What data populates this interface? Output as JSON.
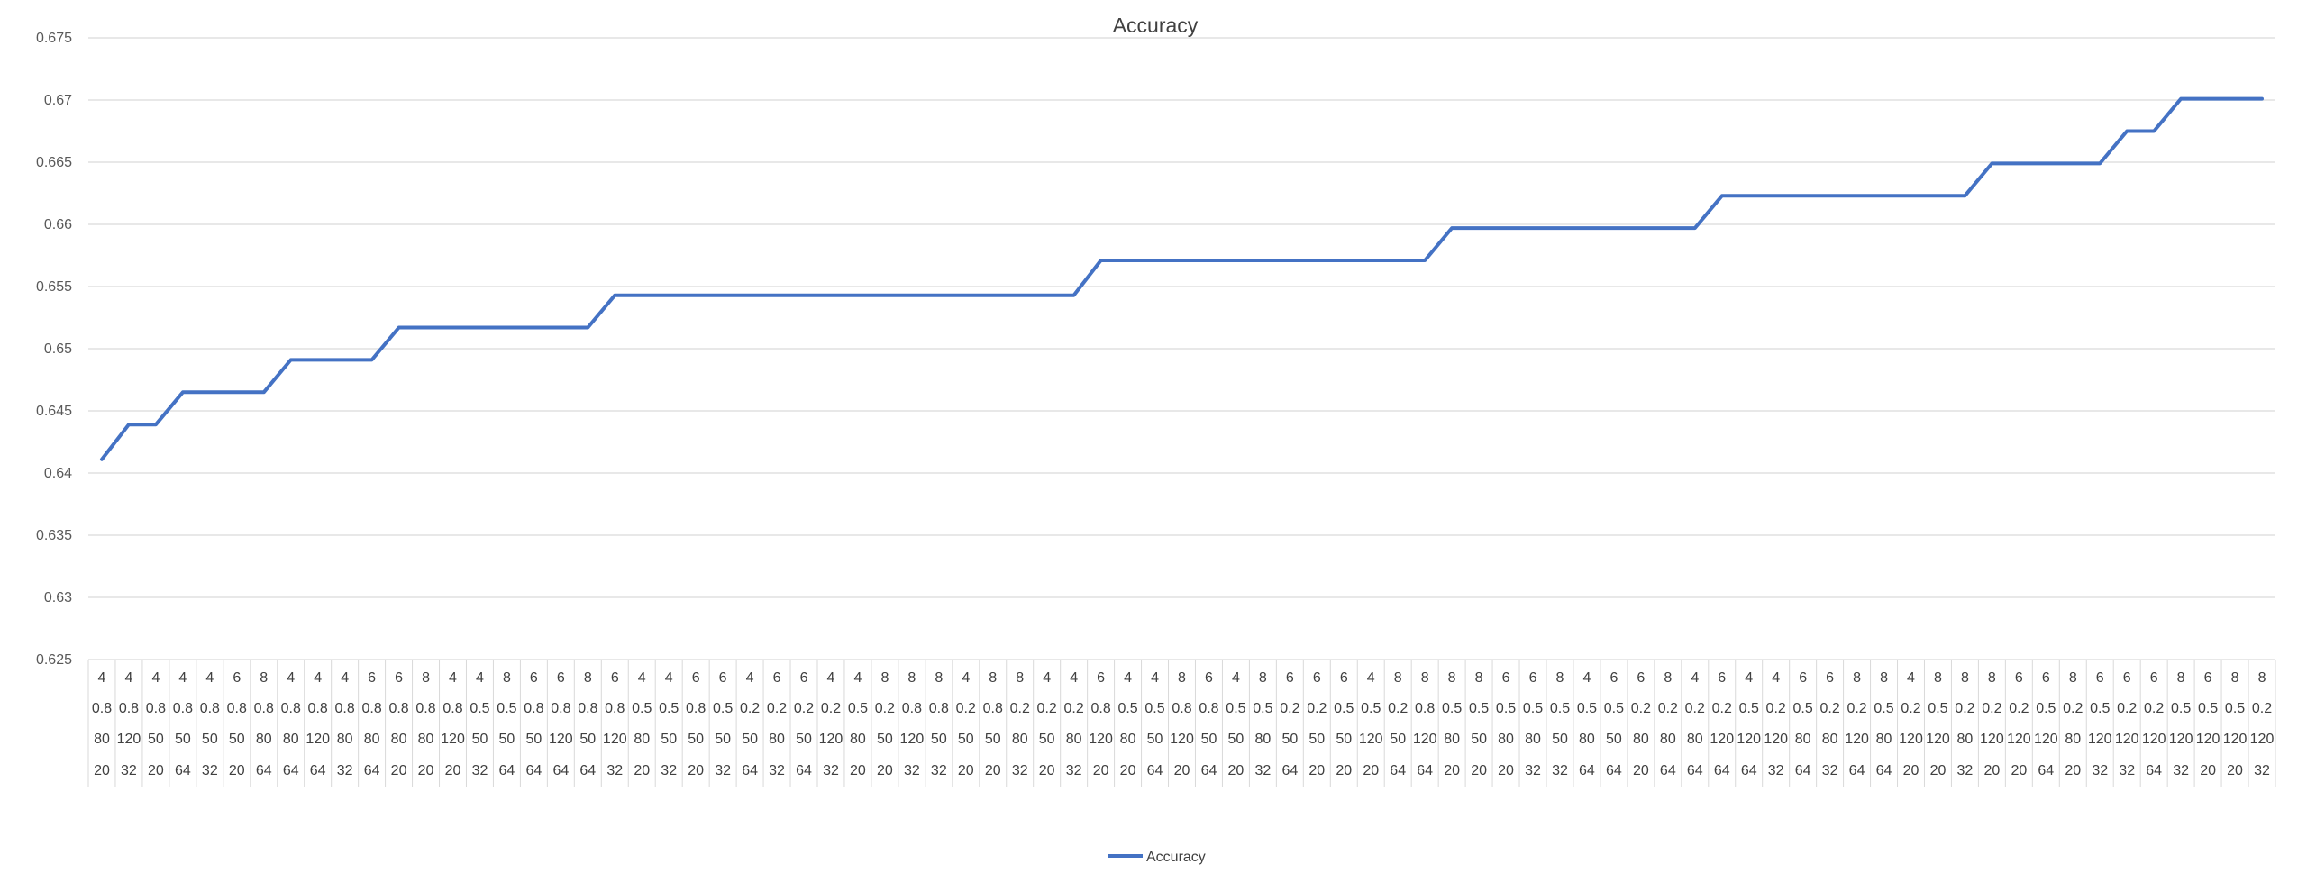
{
  "chart_data": {
    "type": "line",
    "title": "Accuracy",
    "xlabel": "",
    "ylabel": "",
    "ylim": [
      0.625,
      0.675
    ],
    "yticks": [
      "0.625",
      "0.63",
      "0.635",
      "0.64",
      "0.645",
      "0.65",
      "0.655",
      "0.66",
      "0.665",
      "0.67",
      "0.675"
    ],
    "grid": true,
    "legend_position": "bottom",
    "series_color": "#4472C4",
    "categories": [
      [
        "4",
        "0.8",
        "80",
        "20"
      ],
      [
        "4",
        "0.8",
        "120",
        "32"
      ],
      [
        "4",
        "0.8",
        "50",
        "20"
      ],
      [
        "4",
        "0.8",
        "50",
        "64"
      ],
      [
        "4",
        "0.8",
        "50",
        "32"
      ],
      [
        "6",
        "0.8",
        "50",
        "20"
      ],
      [
        "8",
        "0.8",
        "80",
        "64"
      ],
      [
        "4",
        "0.8",
        "80",
        "64"
      ],
      [
        "4",
        "0.8",
        "120",
        "64"
      ],
      [
        "4",
        "0.8",
        "80",
        "32"
      ],
      [
        "6",
        "0.8",
        "80",
        "64"
      ],
      [
        "6",
        "0.8",
        "80",
        "20"
      ],
      [
        "8",
        "0.8",
        "80",
        "20"
      ],
      [
        "4",
        "0.8",
        "120",
        "20"
      ],
      [
        "4",
        "0.5",
        "50",
        "32"
      ],
      [
        "8",
        "0.5",
        "50",
        "64"
      ],
      [
        "6",
        "0.8",
        "50",
        "64"
      ],
      [
        "6",
        "0.8",
        "120",
        "64"
      ],
      [
        "8",
        "0.8",
        "50",
        "64"
      ],
      [
        "6",
        "0.8",
        "120",
        "32"
      ],
      [
        "4",
        "0.5",
        "80",
        "20"
      ],
      [
        "4",
        "0.5",
        "50",
        "32"
      ],
      [
        "6",
        "0.8",
        "50",
        "20"
      ],
      [
        "6",
        "0.5",
        "50",
        "32"
      ],
      [
        "4",
        "0.2",
        "50",
        "64"
      ],
      [
        "6",
        "0.2",
        "80",
        "32"
      ],
      [
        "6",
        "0.2",
        "50",
        "64"
      ],
      [
        "4",
        "0.2",
        "120",
        "32"
      ],
      [
        "4",
        "0.5",
        "80",
        "20"
      ],
      [
        "8",
        "0.2",
        "50",
        "20"
      ],
      [
        "8",
        "0.8",
        "120",
        "32"
      ],
      [
        "8",
        "0.8",
        "50",
        "32"
      ],
      [
        "4",
        "0.2",
        "50",
        "20"
      ],
      [
        "8",
        "0.8",
        "50",
        "20"
      ],
      [
        "8",
        "0.2",
        "80",
        "32"
      ],
      [
        "4",
        "0.2",
        "50",
        "20"
      ],
      [
        "4",
        "0.2",
        "80",
        "32"
      ],
      [
        "6",
        "0.8",
        "120",
        "20"
      ],
      [
        "4",
        "0.5",
        "80",
        "20"
      ],
      [
        "4",
        "0.5",
        "50",
        "64"
      ],
      [
        "8",
        "0.8",
        "120",
        "20"
      ],
      [
        "6",
        "0.8",
        "50",
        "64"
      ],
      [
        "4",
        "0.5",
        "50",
        "20"
      ],
      [
        "8",
        "0.5",
        "80",
        "32"
      ],
      [
        "6",
        "0.2",
        "50",
        "64"
      ],
      [
        "6",
        "0.2",
        "50",
        "20"
      ],
      [
        "6",
        "0.5",
        "50",
        "20"
      ],
      [
        "4",
        "0.5",
        "120",
        "20"
      ],
      [
        "8",
        "0.2",
        "50",
        "64"
      ],
      [
        "8",
        "0.8",
        "120",
        "64"
      ],
      [
        "8",
        "0.5",
        "80",
        "20"
      ],
      [
        "8",
        "0.5",
        "50",
        "20"
      ],
      [
        "6",
        "0.5",
        "80",
        "20"
      ],
      [
        "6",
        "0.5",
        "80",
        "32"
      ],
      [
        "8",
        "0.5",
        "50",
        "32"
      ],
      [
        "4",
        "0.5",
        "80",
        "64"
      ],
      [
        "6",
        "0.5",
        "50",
        "64"
      ],
      [
        "6",
        "0.2",
        "80",
        "20"
      ],
      [
        "8",
        "0.2",
        "80",
        "64"
      ],
      [
        "4",
        "0.2",
        "80",
        "64"
      ],
      [
        "6",
        "0.2",
        "120",
        "64"
      ],
      [
        "4",
        "0.5",
        "120",
        "64"
      ],
      [
        "4",
        "0.2",
        "120",
        "32"
      ],
      [
        "6",
        "0.5",
        "80",
        "64"
      ],
      [
        "6",
        "0.2",
        "80",
        "32"
      ],
      [
        "8",
        "0.2",
        "120",
        "64"
      ],
      [
        "8",
        "0.5",
        "80",
        "64"
      ],
      [
        "4",
        "0.2",
        "120",
        "20"
      ],
      [
        "8",
        "0.5",
        "120",
        "20"
      ],
      [
        "8",
        "0.2",
        "80",
        "32"
      ],
      [
        "8",
        "0.2",
        "120",
        "20"
      ],
      [
        "6",
        "0.2",
        "120",
        "20"
      ],
      [
        "6",
        "0.5",
        "120",
        "64"
      ],
      [
        "8",
        "0.2",
        "80",
        "20"
      ],
      [
        "6",
        "0.5",
        "120",
        "32"
      ],
      [
        "6",
        "0.2",
        "120",
        "32"
      ],
      [
        "6",
        "0.2",
        "120",
        "64"
      ],
      [
        "8",
        "0.5",
        "120",
        "32"
      ],
      [
        "6",
        "0.5",
        "120",
        "20"
      ],
      [
        "8",
        "0.5",
        "120",
        "20"
      ],
      [
        "8",
        "0.2",
        "120",
        "32"
      ]
    ],
    "series": [
      {
        "name": "Accuracy",
        "values": [
          0.6411,
          0.6439,
          0.6439,
          0.6465,
          0.6465,
          0.6465,
          0.6465,
          0.6491,
          0.6491,
          0.6491,
          0.6491,
          0.6517,
          0.6517,
          0.6517,
          0.6517,
          0.6517,
          0.6517,
          0.6517,
          0.6517,
          0.6543,
          0.6543,
          0.6543,
          0.6543,
          0.6543,
          0.6543,
          0.6543,
          0.6543,
          0.6543,
          0.6543,
          0.6543,
          0.6543,
          0.6543,
          0.6543,
          0.6543,
          0.6543,
          0.6543,
          0.6543,
          0.6571,
          0.6571,
          0.6571,
          0.6571,
          0.6571,
          0.6571,
          0.6571,
          0.6571,
          0.6571,
          0.6571,
          0.6571,
          0.6571,
          0.6571,
          0.6597,
          0.6597,
          0.6597,
          0.6597,
          0.6597,
          0.6597,
          0.6597,
          0.6597,
          0.6597,
          0.6597,
          0.6623,
          0.6623,
          0.6623,
          0.6623,
          0.6623,
          0.6623,
          0.6623,
          0.6623,
          0.6623,
          0.6623,
          0.6649,
          0.6649,
          0.6649,
          0.6649,
          0.6649,
          0.6675,
          0.6675,
          0.6701,
          0.6701,
          0.6701,
          0.6701
        ]
      }
    ]
  }
}
